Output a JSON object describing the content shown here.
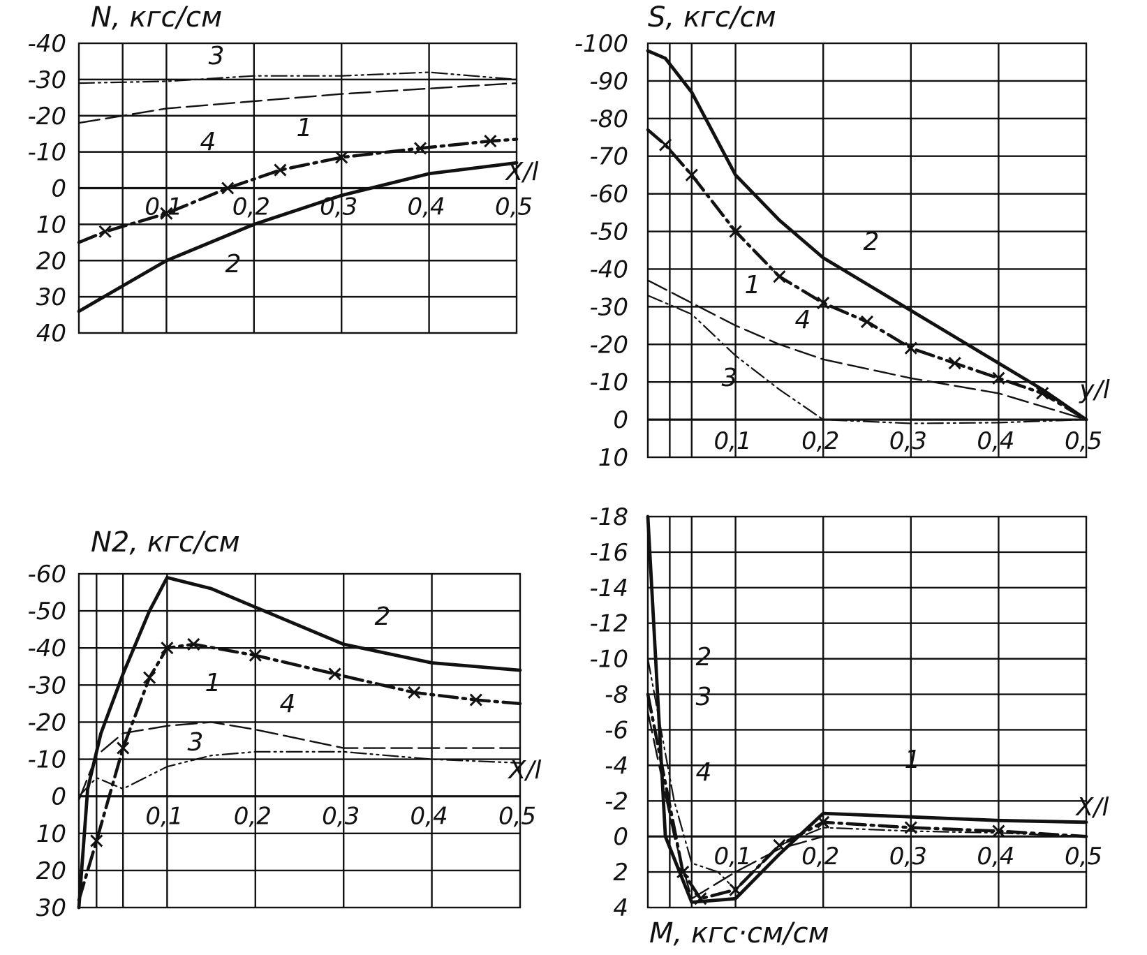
{
  "chart_data": [
    {
      "type": "line",
      "title": "N, кгс/см",
      "xlabel": "X/l",
      "xlim": [
        0,
        0.5
      ],
      "ylim": [
        -40,
        40
      ],
      "y_inverted": true,
      "grid": true,
      "x_ticks": [
        "0,1",
        "0,2",
        "0,3",
        "0,4",
        "0,5"
      ],
      "y_ticks": [
        "-40",
        "-30",
        "-20",
        "-10",
        "0",
        "10",
        "20",
        "30",
        "40"
      ],
      "series": [
        {
          "name": "1",
          "x": [
            0,
            0.03,
            0.1,
            0.17,
            0.23,
            0.3,
            0.39,
            0.47,
            0.5
          ],
          "y": [
            15,
            12,
            7,
            0,
            -5,
            -8.5,
            -11,
            -13,
            -13.5
          ]
        },
        {
          "name": "2",
          "x": [
            0,
            0.05,
            0.1,
            0.2,
            0.3,
            0.4,
            0.5
          ],
          "y": [
            34,
            27,
            20,
            10,
            2,
            -4,
            -7
          ]
        },
        {
          "name": "3",
          "x": [
            0,
            0.1,
            0.2,
            0.3,
            0.4,
            0.5
          ],
          "y": [
            -29,
            -29.5,
            -31,
            -31,
            -32,
            -30
          ]
        },
        {
          "name": "4",
          "x": [
            0,
            0.05,
            0.1,
            0.2,
            0.3,
            0.4,
            0.5
          ],
          "y": [
            -18,
            -20,
            -22,
            -24,
            -26,
            -27.5,
            -29
          ]
        }
      ]
    },
    {
      "type": "line",
      "title": "S, кгс/см",
      "xlabel": "y/l",
      "xlim": [
        0,
        0.5
      ],
      "ylim": [
        -100,
        10
      ],
      "y_inverted": true,
      "grid": true,
      "x_ticks": [
        "0,1",
        "0,2",
        "0,3",
        "0,4",
        "0,5"
      ],
      "y_ticks": [
        "-100",
        "-90",
        "-80",
        "-70",
        "-60",
        "-50",
        "-40",
        "-30",
        "-20",
        "-10",
        "0",
        "10"
      ],
      "series": [
        {
          "name": "1",
          "x": [
            0,
            0.02,
            0.05,
            0.1,
            0.15,
            0.2,
            0.25,
            0.3,
            0.35,
            0.4,
            0.45,
            0.5
          ],
          "y": [
            -77,
            -73,
            -65,
            -50,
            -38,
            -31,
            -26,
            -19,
            -15,
            -11,
            -7,
            0
          ]
        },
        {
          "name": "2",
          "x": [
            0,
            0.02,
            0.05,
            0.1,
            0.15,
            0.2,
            0.25,
            0.3,
            0.35,
            0.4,
            0.45,
            0.5
          ],
          "y": [
            -98,
            -96,
            -87,
            -65,
            -53,
            -43,
            -36,
            -29,
            -22,
            -15,
            -8,
            0
          ]
        },
        {
          "name": "3",
          "x": [
            0,
            0.05,
            0.1,
            0.15,
            0.2,
            0.25,
            0.3,
            0.4,
            0.5
          ],
          "y": [
            -33,
            -28,
            -17,
            -8,
            0,
            0.5,
            1,
            0.8,
            0
          ]
        },
        {
          "name": "4",
          "x": [
            0,
            0.05,
            0.1,
            0.15,
            0.2,
            0.3,
            0.4,
            0.5
          ],
          "y": [
            -37,
            -31,
            -25,
            -20,
            -16,
            -11,
            -7,
            0
          ]
        }
      ]
    },
    {
      "type": "line",
      "title": "N2, кгс/см",
      "xlabel": "X/l",
      "xlim": [
        0,
        0.5
      ],
      "ylim": [
        -60,
        30
      ],
      "y_inverted": true,
      "grid": true,
      "x_ticks": [
        "0,1",
        "0,2",
        "0,3",
        "0,4",
        "0,5"
      ],
      "y_ticks": [
        "-60",
        "-50",
        "-40",
        "-30",
        "-20",
        "-10",
        "0",
        "10",
        "20",
        "30"
      ],
      "series": [
        {
          "name": "1",
          "x": [
            0,
            0.02,
            0.05,
            0.08,
            0.1,
            0.13,
            0.2,
            0.29,
            0.38,
            0.45,
            0.5
          ],
          "y": [
            28,
            12,
            -13,
            -32,
            -40,
            -41,
            -38,
            -33,
            -28,
            -26,
            -25
          ]
        },
        {
          "name": "2",
          "x": [
            0,
            0.01,
            0.025,
            0.05,
            0.08,
            0.1,
            0.15,
            0.2,
            0.3,
            0.4,
            0.5
          ],
          "y": [
            30,
            -2,
            -17,
            -33,
            -50,
            -59,
            -56,
            -51,
            -41,
            -36,
            -34
          ]
        },
        {
          "name": "3",
          "x": [
            0,
            0.02,
            0.05,
            0.1,
            0.15,
            0.2,
            0.3,
            0.4,
            0.5
          ],
          "y": [
            0,
            -5,
            -2,
            -8,
            -11,
            -12,
            -12,
            -10,
            -9
          ]
        },
        {
          "name": "4",
          "x": [
            0,
            0.02,
            0.05,
            0.1,
            0.15,
            0.2,
            0.3,
            0.4,
            0.5
          ],
          "y": [
            1,
            -11,
            -17,
            -19,
            -20,
            -18,
            -13,
            -13,
            -13
          ]
        }
      ]
    },
    {
      "type": "line",
      "title": "M, кгс·см/см",
      "xlabel": "X/l",
      "xlim": [
        0,
        0.5
      ],
      "ylim": [
        -18,
        4
      ],
      "y_inverted": true,
      "grid": true,
      "x_ticks": [
        "0,1",
        "0,2",
        "0,3",
        "0,4",
        "0,5"
      ],
      "y_ticks": [
        "-18",
        "-16",
        "-14",
        "-12",
        "-10",
        "-8",
        "-6",
        "-4",
        "-2",
        "0",
        "2",
        "4"
      ],
      "series": [
        {
          "name": "1",
          "x": [
            0,
            0.04,
            0.06,
            0.1,
            0.15,
            0.2,
            0.3,
            0.4,
            0.5
          ],
          "y": [
            -8,
            2,
            3.5,
            3,
            0.5,
            -0.8,
            -0.5,
            -0.3,
            0
          ]
        },
        {
          "name": "2",
          "x": [
            0,
            0.02,
            0.05,
            0.1,
            0.15,
            0.2,
            0.3,
            0.4,
            0.5
          ],
          "y": [
            -18,
            0,
            3.7,
            3.5,
            1,
            -1.3,
            -1.1,
            -0.9,
            -0.8
          ]
        },
        {
          "name": "3",
          "x": [
            0,
            0.03,
            0.05,
            0.08,
            0.1,
            0.15,
            0.2,
            0.3,
            0.4,
            0.5
          ],
          "y": [
            -10,
            -2,
            1.5,
            2,
            3,
            0.5,
            -0.5,
            -0.3,
            -0.2,
            0
          ]
        },
        {
          "name": "4",
          "x": [
            0,
            0.03,
            0.05,
            0.1,
            0.15,
            0.2,
            0.3,
            0.4,
            0.5
          ],
          "y": [
            -7,
            0,
            3.5,
            2,
            0.7,
            0,
            0,
            0,
            0
          ]
        }
      ]
    }
  ]
}
